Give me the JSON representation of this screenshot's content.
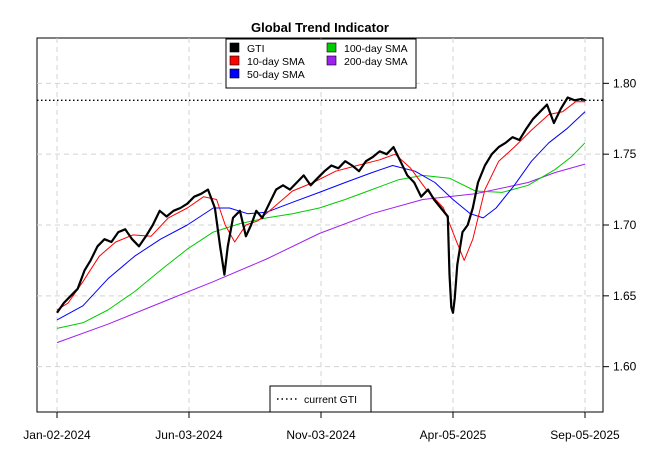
{
  "chart_data": {
    "type": "line",
    "title": "Global Trend Indicator",
    "xlabel": "",
    "ylabel": "",
    "x_start": "2024-01-02",
    "x_end": "2025-09-05",
    "x_ticks": [
      {
        "date": "2024-01-02",
        "label": "Jan-02-2024"
      },
      {
        "date": "2024-06-03",
        "label": "Jun-03-2024"
      },
      {
        "date": "2024-11-03",
        "label": "Nov-03-2024"
      },
      {
        "date": "2025-04-05",
        "label": "Apr-05-2025"
      },
      {
        "date": "2025-09-05",
        "label": "Sep-05-2025"
      }
    ],
    "ylim": [
      1.568,
      1.832
    ],
    "y_ticks": [
      {
        "value": 1.6,
        "label": "1.60"
      },
      {
        "value": 1.65,
        "label": "1.65"
      },
      {
        "value": 1.7,
        "label": "1.70"
      },
      {
        "value": 1.75,
        "label": "1.75"
      },
      {
        "value": 1.8,
        "label": "1.80"
      }
    ],
    "grid": true,
    "legend_position": "top-center",
    "series": [
      {
        "name": "GTI",
        "color": "#000000",
        "points": [
          [
            "2024-01-02",
            1.638
          ],
          [
            "2024-01-10",
            1.645
          ],
          [
            "2024-01-18",
            1.65
          ],
          [
            "2024-01-26",
            1.655
          ],
          [
            "2024-02-03",
            1.668
          ],
          [
            "2024-02-10",
            1.675
          ],
          [
            "2024-02-18",
            1.685
          ],
          [
            "2024-02-26",
            1.69
          ],
          [
            "2024-03-05",
            1.688
          ],
          [
            "2024-03-13",
            1.695
          ],
          [
            "2024-03-21",
            1.697
          ],
          [
            "2024-03-29",
            1.69
          ],
          [
            "2024-04-06",
            1.685
          ],
          [
            "2024-04-14",
            1.692
          ],
          [
            "2024-04-22",
            1.7
          ],
          [
            "2024-04-30",
            1.71
          ],
          [
            "2024-05-08",
            1.706
          ],
          [
            "2024-05-16",
            1.71
          ],
          [
            "2024-05-24",
            1.712
          ],
          [
            "2024-06-01",
            1.715
          ],
          [
            "2024-06-09",
            1.72
          ],
          [
            "2024-06-17",
            1.722
          ],
          [
            "2024-06-25",
            1.725
          ],
          [
            "2024-07-03",
            1.712
          ],
          [
            "2024-07-09",
            1.685
          ],
          [
            "2024-07-14",
            1.665
          ],
          [
            "2024-07-18",
            1.685
          ],
          [
            "2024-07-24",
            1.705
          ],
          [
            "2024-08-01",
            1.71
          ],
          [
            "2024-08-08",
            1.692
          ],
          [
            "2024-08-14",
            1.7
          ],
          [
            "2024-08-20",
            1.71
          ],
          [
            "2024-08-27",
            1.705
          ],
          [
            "2024-09-04",
            1.715
          ],
          [
            "2024-09-12",
            1.725
          ],
          [
            "2024-09-20",
            1.728
          ],
          [
            "2024-09-28",
            1.725
          ],
          [
            "2024-10-06",
            1.73
          ],
          [
            "2024-10-14",
            1.735
          ],
          [
            "2024-10-22",
            1.728
          ],
          [
            "2024-10-30",
            1.733
          ],
          [
            "2024-11-07",
            1.738
          ],
          [
            "2024-11-15",
            1.742
          ],
          [
            "2024-11-23",
            1.74
          ],
          [
            "2024-12-01",
            1.745
          ],
          [
            "2024-12-09",
            1.742
          ],
          [
            "2024-12-17",
            1.738
          ],
          [
            "2024-12-25",
            1.745
          ],
          [
            "2025-01-02",
            1.748
          ],
          [
            "2025-01-10",
            1.752
          ],
          [
            "2025-01-18",
            1.75
          ],
          [
            "2025-01-26",
            1.755
          ],
          [
            "2025-02-03",
            1.745
          ],
          [
            "2025-02-11",
            1.735
          ],
          [
            "2025-02-19",
            1.73
          ],
          [
            "2025-02-27",
            1.72
          ],
          [
            "2025-03-07",
            1.725
          ],
          [
            "2025-03-14",
            1.718
          ],
          [
            "2025-03-22",
            1.712
          ],
          [
            "2025-03-30",
            1.706
          ],
          [
            "2025-04-01",
            1.665
          ],
          [
            "2025-04-03",
            1.642
          ],
          [
            "2025-04-05",
            1.638
          ],
          [
            "2025-04-07",
            1.648
          ],
          [
            "2025-04-10",
            1.672
          ],
          [
            "2025-04-16",
            1.695
          ],
          [
            "2025-04-22",
            1.7
          ],
          [
            "2025-04-28",
            1.712
          ],
          [
            "2025-05-04",
            1.73
          ],
          [
            "2025-05-12",
            1.742
          ],
          [
            "2025-05-20",
            1.75
          ],
          [
            "2025-05-28",
            1.755
          ],
          [
            "2025-06-05",
            1.758
          ],
          [
            "2025-06-13",
            1.762
          ],
          [
            "2025-06-21",
            1.76
          ],
          [
            "2025-06-29",
            1.768
          ],
          [
            "2025-07-07",
            1.775
          ],
          [
            "2025-07-15",
            1.78
          ],
          [
            "2025-07-23",
            1.785
          ],
          [
            "2025-07-31",
            1.772
          ],
          [
            "2025-08-08",
            1.782
          ],
          [
            "2025-08-16",
            1.79
          ],
          [
            "2025-08-24",
            1.788
          ],
          [
            "2025-09-01",
            1.789
          ],
          [
            "2025-09-05",
            1.788
          ]
        ]
      },
      {
        "name": "10-day SMA",
        "color": "#ff0000",
        "points": [
          [
            "2024-01-02",
            1.64
          ],
          [
            "2024-01-15",
            1.645
          ],
          [
            "2024-02-01",
            1.66
          ],
          [
            "2024-02-20",
            1.678
          ],
          [
            "2024-03-10",
            1.688
          ],
          [
            "2024-03-30",
            1.693
          ],
          [
            "2024-04-20",
            1.692
          ],
          [
            "2024-05-10",
            1.705
          ],
          [
            "2024-06-01",
            1.712
          ],
          [
            "2024-06-20",
            1.72
          ],
          [
            "2024-07-05",
            1.718
          ],
          [
            "2024-07-15",
            1.7
          ],
          [
            "2024-07-26",
            1.688
          ],
          [
            "2024-08-08",
            1.7
          ],
          [
            "2024-08-22",
            1.703
          ],
          [
            "2024-09-10",
            1.713
          ],
          [
            "2024-10-01",
            1.724
          ],
          [
            "2024-10-25",
            1.73
          ],
          [
            "2024-11-20",
            1.738
          ],
          [
            "2024-12-15",
            1.742
          ],
          [
            "2025-01-10",
            1.746
          ],
          [
            "2025-01-28",
            1.75
          ],
          [
            "2025-02-15",
            1.74
          ],
          [
            "2025-03-05",
            1.725
          ],
          [
            "2025-03-25",
            1.712
          ],
          [
            "2025-04-08",
            1.69
          ],
          [
            "2025-04-18",
            1.675
          ],
          [
            "2025-04-28",
            1.69
          ],
          [
            "2025-05-12",
            1.725
          ],
          [
            "2025-05-28",
            1.745
          ],
          [
            "2025-06-15",
            1.755
          ],
          [
            "2025-07-05",
            1.767
          ],
          [
            "2025-07-25",
            1.778
          ],
          [
            "2025-08-10",
            1.78
          ],
          [
            "2025-08-25",
            1.787
          ],
          [
            "2025-09-05",
            1.787
          ]
        ]
      },
      {
        "name": "50-day SMA",
        "color": "#0000ff",
        "points": [
          [
            "2024-01-02",
            1.633
          ],
          [
            "2024-02-01",
            1.643
          ],
          [
            "2024-03-01",
            1.662
          ],
          [
            "2024-04-01",
            1.678
          ],
          [
            "2024-05-01",
            1.69
          ],
          [
            "2024-06-01",
            1.7
          ],
          [
            "2024-07-01",
            1.712
          ],
          [
            "2024-07-20",
            1.712
          ],
          [
            "2024-08-10",
            1.708
          ],
          [
            "2024-09-01",
            1.709
          ],
          [
            "2024-10-01",
            1.716
          ],
          [
            "2024-11-01",
            1.723
          ],
          [
            "2024-12-01",
            1.73
          ],
          [
            "2025-01-01",
            1.737
          ],
          [
            "2025-01-25",
            1.742
          ],
          [
            "2025-02-20",
            1.738
          ],
          [
            "2025-03-15",
            1.73
          ],
          [
            "2025-04-05",
            1.718
          ],
          [
            "2025-04-25",
            1.708
          ],
          [
            "2025-05-10",
            1.705
          ],
          [
            "2025-05-25",
            1.712
          ],
          [
            "2025-06-15",
            1.728
          ],
          [
            "2025-07-05",
            1.745
          ],
          [
            "2025-07-25",
            1.758
          ],
          [
            "2025-08-15",
            1.768
          ],
          [
            "2025-09-05",
            1.78
          ]
        ]
      },
      {
        "name": "100-day SMA",
        "color": "#00cc00",
        "points": [
          [
            "2024-01-02",
            1.627
          ],
          [
            "2024-02-01",
            1.631
          ],
          [
            "2024-03-01",
            1.64
          ],
          [
            "2024-04-01",
            1.653
          ],
          [
            "2024-05-01",
            1.668
          ],
          [
            "2024-06-01",
            1.683
          ],
          [
            "2024-07-01",
            1.695
          ],
          [
            "2024-08-01",
            1.701
          ],
          [
            "2024-09-01",
            1.705
          ],
          [
            "2024-10-01",
            1.708
          ],
          [
            "2024-11-01",
            1.712
          ],
          [
            "2024-12-01",
            1.718
          ],
          [
            "2025-01-01",
            1.725
          ],
          [
            "2025-02-01",
            1.732
          ],
          [
            "2025-03-01",
            1.735
          ],
          [
            "2025-04-01",
            1.733
          ],
          [
            "2025-05-01",
            1.724
          ],
          [
            "2025-06-01",
            1.723
          ],
          [
            "2025-07-01",
            1.728
          ],
          [
            "2025-08-01",
            1.739
          ],
          [
            "2025-08-20",
            1.748
          ],
          [
            "2025-09-05",
            1.758
          ]
        ]
      },
      {
        "name": "200-day SMA",
        "color": "#a020f0",
        "points": [
          [
            "2024-01-02",
            1.617
          ],
          [
            "2024-03-01",
            1.63
          ],
          [
            "2024-05-01",
            1.645
          ],
          [
            "2024-07-01",
            1.66
          ],
          [
            "2024-09-01",
            1.676
          ],
          [
            "2024-11-01",
            1.694
          ],
          [
            "2025-01-01",
            1.708
          ],
          [
            "2025-03-01",
            1.718
          ],
          [
            "2025-05-01",
            1.722
          ],
          [
            "2025-07-01",
            1.73
          ],
          [
            "2025-08-01",
            1.737
          ],
          [
            "2025-09-05",
            1.743
          ]
        ]
      },
      {
        "name": "current GTI",
        "color": "#000000",
        "style": "dotted",
        "value": 1.788
      }
    ]
  }
}
